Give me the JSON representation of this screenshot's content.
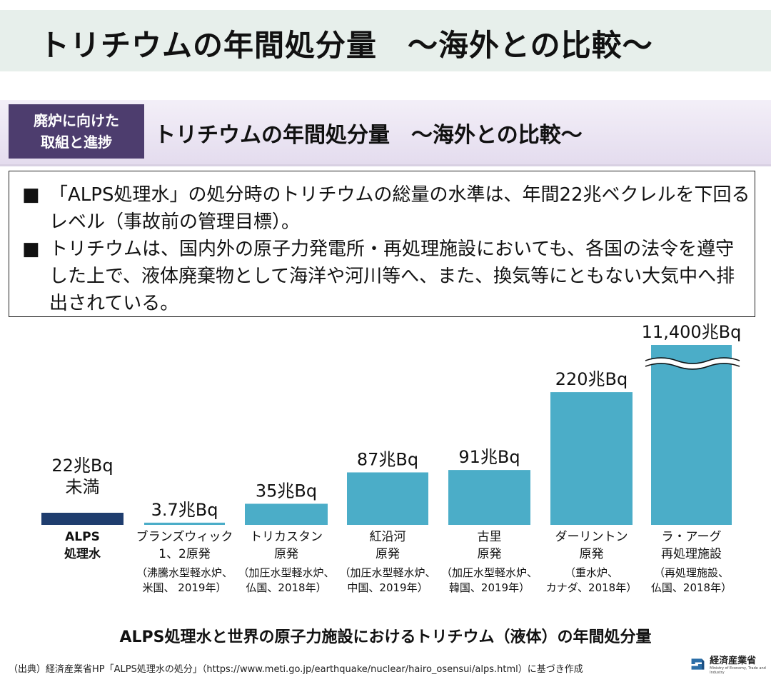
{
  "header": {
    "title": "トリチウムの年間処分量　～海外との比較～"
  },
  "subheader": {
    "badge_line1": "廃炉に向けた",
    "badge_line2": "取組と進捗",
    "title": "トリチウムの年間処分量　～海外との比較～"
  },
  "bullets": [
    {
      "marker": "■",
      "text": "「ALPS処理水」の処分時のトリチウムの総量の水準は、年間22兆ベクレルを下回るレベル（事故前の管理目標）。"
    },
    {
      "marker": "■",
      "text": "トリチウムは、国内外の原子力発電所・再処理施設においても、各国の法令を遵守した上で、液体廃棄物として海洋や河川等へ、また、換気等にともない大気中へ排出されている。"
    }
  ],
  "chart_data": {
    "type": "bar",
    "unit": "兆Bq",
    "title": "ALPS処理水と世界の原子力施設におけるトリチウム（液体）の年間処分量",
    "axis_break": true,
    "categories": [
      {
        "name_lines": [
          "ALPS",
          "処理水"
        ],
        "note_lines": []
      },
      {
        "name_lines": [
          "ブランズウィック",
          "1、2原発"
        ],
        "note_lines": [
          "（沸騰水型軽水炉、",
          "米国、 2019年）"
        ]
      },
      {
        "name_lines": [
          "トリカスタン",
          "原発"
        ],
        "note_lines": [
          "（加圧水型軽水炉、",
          "仏国、2018年）"
        ]
      },
      {
        "name_lines": [
          "紅沿河",
          "原発"
        ],
        "note_lines": [
          "（加圧水型軽水炉、",
          "中国、2019年）"
        ]
      },
      {
        "name_lines": [
          "古里",
          "原発"
        ],
        "note_lines": [
          "（加圧水型軽水炉、",
          "韓国、2019年）"
        ]
      },
      {
        "name_lines": [
          "ダーリントン",
          "原発"
        ],
        "note_lines": [
          "（重水炉、",
          "カナダ、2018年）"
        ]
      },
      {
        "name_lines": [
          "ラ・アーグ",
          "再処理施設"
        ],
        "note_lines": [
          "（再処理施設、",
          "仏国、2018年）"
        ]
      }
    ],
    "values": [
      22,
      3.7,
      35,
      87,
      91,
      220,
      11400
    ],
    "value_labels": [
      [
        "22兆Bq",
        "未満"
      ],
      [
        "3.7兆Bq"
      ],
      [
        "35兆Bq"
      ],
      [
        "87兆Bq"
      ],
      [
        "91兆Bq"
      ],
      [
        "220兆Bq"
      ],
      [
        "11,400兆Bq"
      ]
    ],
    "colors": {
      "alps": "#1f3d6e",
      "others": "#4badc8",
      "alps_label": "#e8231c"
    }
  },
  "footer": {
    "caption": "ALPS処理水と世界の原子力施設におけるトリチウム（液体）の年間処分量",
    "source": "（出典）経済産業省HP「ALPS処理水の処分」（https://www.meti.go.jp/earthquake/nuclear/hairo_osensui/alps.html）に基づき作成",
    "logo_text": "経済産業省",
    "logo_sub": "Ministry of Economy, Trade and Industry",
    "logo_icon": "meti-logo-icon"
  }
}
